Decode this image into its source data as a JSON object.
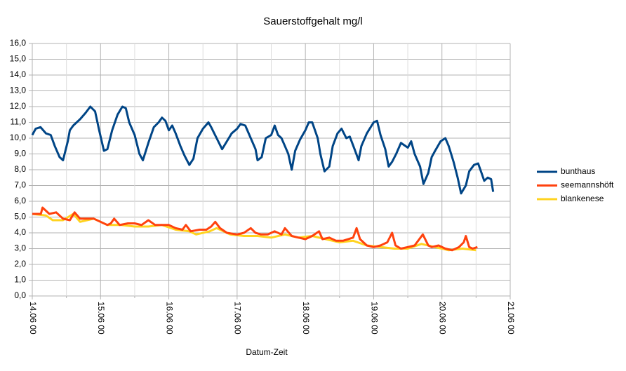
{
  "chart_data": {
    "type": "line",
    "title": "Sauerstoffgehalt mg/l",
    "x_label": "Datum-Zeit",
    "xlim": [
      0,
      7
    ],
    "xticks": [
      {
        "value": 0,
        "label": "14.06 00"
      },
      {
        "value": 1,
        "label": "15.06 00"
      },
      {
        "value": 2,
        "label": "16.06 00"
      },
      {
        "value": 3,
        "label": "17.06 00"
      },
      {
        "value": 4,
        "label": "18.06 00"
      },
      {
        "value": 5,
        "label": "19.06 00"
      },
      {
        "value": 6,
        "label": "20.06 00"
      },
      {
        "value": 7,
        "label": "21.06 00"
      }
    ],
    "minor_xticks": [
      0.5,
      1.5,
      2.5,
      3.5,
      4.5,
      5.5,
      6.5
    ],
    "ylim": [
      0,
      16
    ],
    "yticks": [
      {
        "value": 0,
        "label": "0,0"
      },
      {
        "value": 1,
        "label": "1,0"
      },
      {
        "value": 2,
        "label": "2,0"
      },
      {
        "value": 3,
        "label": "3,0"
      },
      {
        "value": 4,
        "label": "4,0"
      },
      {
        "value": 5,
        "label": "5,0"
      },
      {
        "value": 6,
        "label": "6,0"
      },
      {
        "value": 7,
        "label": "7,0"
      },
      {
        "value": 8,
        "label": "8,0"
      },
      {
        "value": 9,
        "label": "9,0"
      },
      {
        "value": 10,
        "label": "10,0"
      },
      {
        "value": 11,
        "label": "11,0"
      },
      {
        "value": 12,
        "label": "12,0"
      },
      {
        "value": 13,
        "label": "13,0"
      },
      {
        "value": 14,
        "label": "14,0"
      },
      {
        "value": 15,
        "label": "15,0"
      },
      {
        "value": 16,
        "label": "16,0"
      }
    ],
    "grid": true,
    "legend": "right",
    "series": [
      {
        "name": "bunthaus",
        "color": "#004586",
        "x": [
          0,
          0.05,
          0.12,
          0.2,
          0.27,
          0.33,
          0.4,
          0.45,
          0.52,
          0.55,
          0.6,
          0.7,
          0.78,
          0.85,
          0.92,
          0.98,
          1.05,
          1.1,
          1.17,
          1.25,
          1.32,
          1.37,
          1.42,
          1.5,
          1.57,
          1.62,
          1.7,
          1.78,
          1.85,
          1.9,
          1.95,
          2,
          2.05,
          2.1,
          2.17,
          2.23,
          2.3,
          2.36,
          2.42,
          2.5,
          2.58,
          2.62,
          2.7,
          2.78,
          2.85,
          2.92,
          3,
          3.05,
          3.12,
          3.2,
          3.27,
          3.3,
          3.36,
          3.42,
          3.5,
          3.55,
          3.6,
          3.65,
          3.7,
          3.75,
          3.8,
          3.85,
          3.92,
          4,
          4.05,
          4.1,
          4.18,
          4.22,
          4.28,
          4.35,
          4.4,
          4.47,
          4.53,
          4.6,
          4.65,
          4.72,
          4.78,
          4.82,
          4.9,
          5,
          5.05,
          5.1,
          5.17,
          5.22,
          5.27,
          5.33,
          5.4,
          5.5,
          5.55,
          5.6,
          5.68,
          5.73,
          5.8,
          5.85,
          5.9,
          5.98,
          6.05,
          6.1,
          6.17,
          6.23,
          6.28,
          6.35,
          6.4,
          6.47,
          6.53,
          6.58,
          6.62,
          6.67,
          6.72,
          6.75
        ],
        "values": [
          10.2,
          10.6,
          10.7,
          10.3,
          10.2,
          9.5,
          8.8,
          8.6,
          9.8,
          10.5,
          10.8,
          11.2,
          11.6,
          12,
          11.7,
          10.5,
          9.2,
          9.3,
          10.5,
          11.5,
          12,
          11.9,
          11,
          10.2,
          9,
          8.6,
          9.7,
          10.7,
          11,
          11.3,
          11.1,
          10.5,
          10.8,
          10.3,
          9.5,
          8.9,
          8.3,
          8.7,
          10,
          10.6,
          11,
          10.7,
          10,
          9.3,
          9.8,
          10.3,
          10.6,
          10.9,
          10.8,
          10,
          9.3,
          8.6,
          8.8,
          10,
          10.2,
          10.8,
          10.2,
          10,
          9.5,
          9,
          8,
          9.2,
          9.9,
          10.5,
          11,
          11,
          10,
          9,
          7.9,
          8.2,
          9.5,
          10.3,
          10.6,
          10,
          10.1,
          9.3,
          8.6,
          9.5,
          10.3,
          11,
          11.1,
          10.2,
          9.3,
          8.2,
          8.5,
          9,
          9.7,
          9.4,
          9.8,
          9,
          8.2,
          7.1,
          7.8,
          8.8,
          9.2,
          9.8,
          10,
          9.5,
          8.5,
          7.5,
          6.5,
          7,
          7.9,
          8.3,
          8.4,
          7.8,
          7.3,
          7.5,
          7.4,
          6.6
        ]
      },
      {
        "name": "seemannshöft",
        "color": "#ff420e",
        "x": [
          0,
          0.125,
          0.15,
          0.25,
          0.35,
          0.45,
          0.55,
          0.62,
          0.7,
          0.8,
          0.9,
          1,
          1.1,
          1.15,
          1.2,
          1.28,
          1.4,
          1.5,
          1.6,
          1.7,
          1.8,
          1.9,
          2,
          2.1,
          2.2,
          2.25,
          2.32,
          2.45,
          2.55,
          2.62,
          2.68,
          2.75,
          2.85,
          3,
          3.1,
          3.2,
          3.27,
          3.35,
          3.45,
          3.55,
          3.65,
          3.7,
          3.8,
          3.9,
          4,
          4.1,
          4.2,
          4.25,
          4.35,
          4.45,
          4.55,
          4.7,
          4.75,
          4.8,
          4.9,
          5,
          5.1,
          5.2,
          5.27,
          5.32,
          5.4,
          5.5,
          5.6,
          5.72,
          5.8,
          5.85,
          5.95,
          6.05,
          6.15,
          6.25,
          6.32,
          6.35,
          6.4,
          6.45,
          6.52
        ],
        "values": [
          5.2,
          5.2,
          5.6,
          5.2,
          5.3,
          4.9,
          4.8,
          5.3,
          4.9,
          4.9,
          4.9,
          4.7,
          4.5,
          4.6,
          4.9,
          4.5,
          4.6,
          4.6,
          4.5,
          4.8,
          4.5,
          4.5,
          4.5,
          4.3,
          4.2,
          4.5,
          4.1,
          4.2,
          4.2,
          4.4,
          4.7,
          4.3,
          4,
          3.9,
          4,
          4.3,
          4,
          3.9,
          3.9,
          4.1,
          3.9,
          4.3,
          3.8,
          3.7,
          3.6,
          3.8,
          4.1,
          3.6,
          3.7,
          3.5,
          3.5,
          3.7,
          4.3,
          3.6,
          3.2,
          3.1,
          3.2,
          3.4,
          4,
          3.2,
          3,
          3.1,
          3.2,
          3.9,
          3.2,
          3.1,
          3.2,
          3,
          2.9,
          3.1,
          3.4,
          3.8,
          3.1,
          3,
          3.1
        ]
      },
      {
        "name": "blankenese",
        "color": "#ffd320",
        "x": [
          0,
          0.2,
          0.3,
          0.45,
          0.6,
          0.7,
          0.9,
          1.1,
          1.3,
          1.5,
          1.7,
          1.9,
          2.1,
          2.3,
          2.4,
          2.6,
          2.7,
          2.9,
          3.1,
          3.3,
          3.5,
          3.7,
          3.9,
          4.1,
          4.3,
          4.5,
          4.7,
          4.9,
          5.1,
          5.3,
          5.5,
          5.7,
          5.9,
          6.1,
          6.3,
          6.5
        ],
        "values": [
          5.2,
          5.1,
          4.8,
          4.8,
          5.2,
          4.7,
          4.9,
          4.5,
          4.5,
          4.4,
          4.4,
          4.5,
          4.2,
          4.1,
          3.9,
          4.1,
          4.3,
          3.9,
          3.8,
          3.8,
          3.7,
          3.9,
          3.7,
          3.8,
          3.6,
          3.4,
          3.5,
          3.2,
          3.1,
          3,
          3,
          3.3,
          3.1,
          2.9,
          3,
          2.9
        ]
      }
    ]
  }
}
